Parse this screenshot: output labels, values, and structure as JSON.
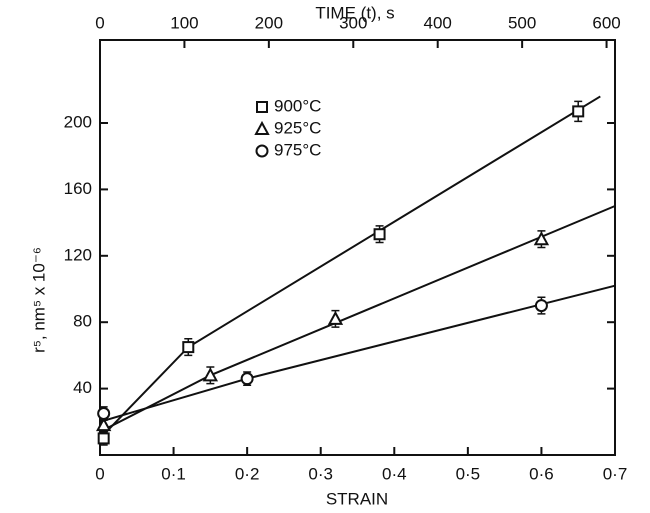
{
  "chart_data": {
    "type": "scatter",
    "title": "TIME (t), s",
    "x_label": "STRAIN",
    "y_label": "r⁵, nm⁵ x 10⁻⁶",
    "xlim": [
      0,
      0.7
    ],
    "xticks": [
      0,
      {
        "value": 0.1,
        "label": "0·1"
      },
      {
        "value": 0.2,
        "label": "0·2"
      },
      {
        "value": 0.3,
        "label": "0·3"
      },
      {
        "value": 0.4,
        "label": "0·4"
      },
      {
        "value": 0.5,
        "label": "0·5"
      },
      {
        "value": 0.6,
        "label": "0·6"
      },
      {
        "value": 0.7,
        "label": "0·7"
      }
    ],
    "x2lim": [
      0,
      610
    ],
    "x2ticks": [
      0,
      100,
      200,
      300,
      400,
      500,
      600
    ],
    "ylim": [
      0,
      250
    ],
    "yticks": [
      40,
      80,
      120,
      160,
      200
    ],
    "legend": "upper left",
    "series": [
      {
        "name": "900°C",
        "marker": "square",
        "color": "#111",
        "x": [
          0.005,
          0.12,
          0.38,
          0.65
        ],
        "values": [
          10,
          65,
          133,
          207
        ],
        "errors": [
          4,
          5,
          5,
          6
        ],
        "fit": {
          "x": [
            0,
            0.12,
            0.68
          ],
          "values": [
            10,
            65,
            216
          ]
        }
      },
      {
        "name": "925°C",
        "marker": "triangle",
        "color": "#111",
        "x": [
          0.005,
          0.15,
          0.32,
          0.6
        ],
        "values": [
          18,
          48,
          82,
          130
        ],
        "errors": [
          4,
          5,
          5,
          5
        ],
        "fit": {
          "x": [
            0,
            0.15,
            0.7
          ],
          "values": [
            14,
            48,
            150
          ]
        }
      },
      {
        "name": "975°C",
        "marker": "circle",
        "color": "#111",
        "x": [
          0.005,
          0.2,
          0.6
        ],
        "values": [
          25,
          46,
          90
        ],
        "errors": [
          4,
          4,
          5
        ],
        "fit": {
          "x": [
            0,
            0.2,
            0.7
          ],
          "values": [
            20,
            46,
            102
          ]
        }
      }
    ]
  }
}
